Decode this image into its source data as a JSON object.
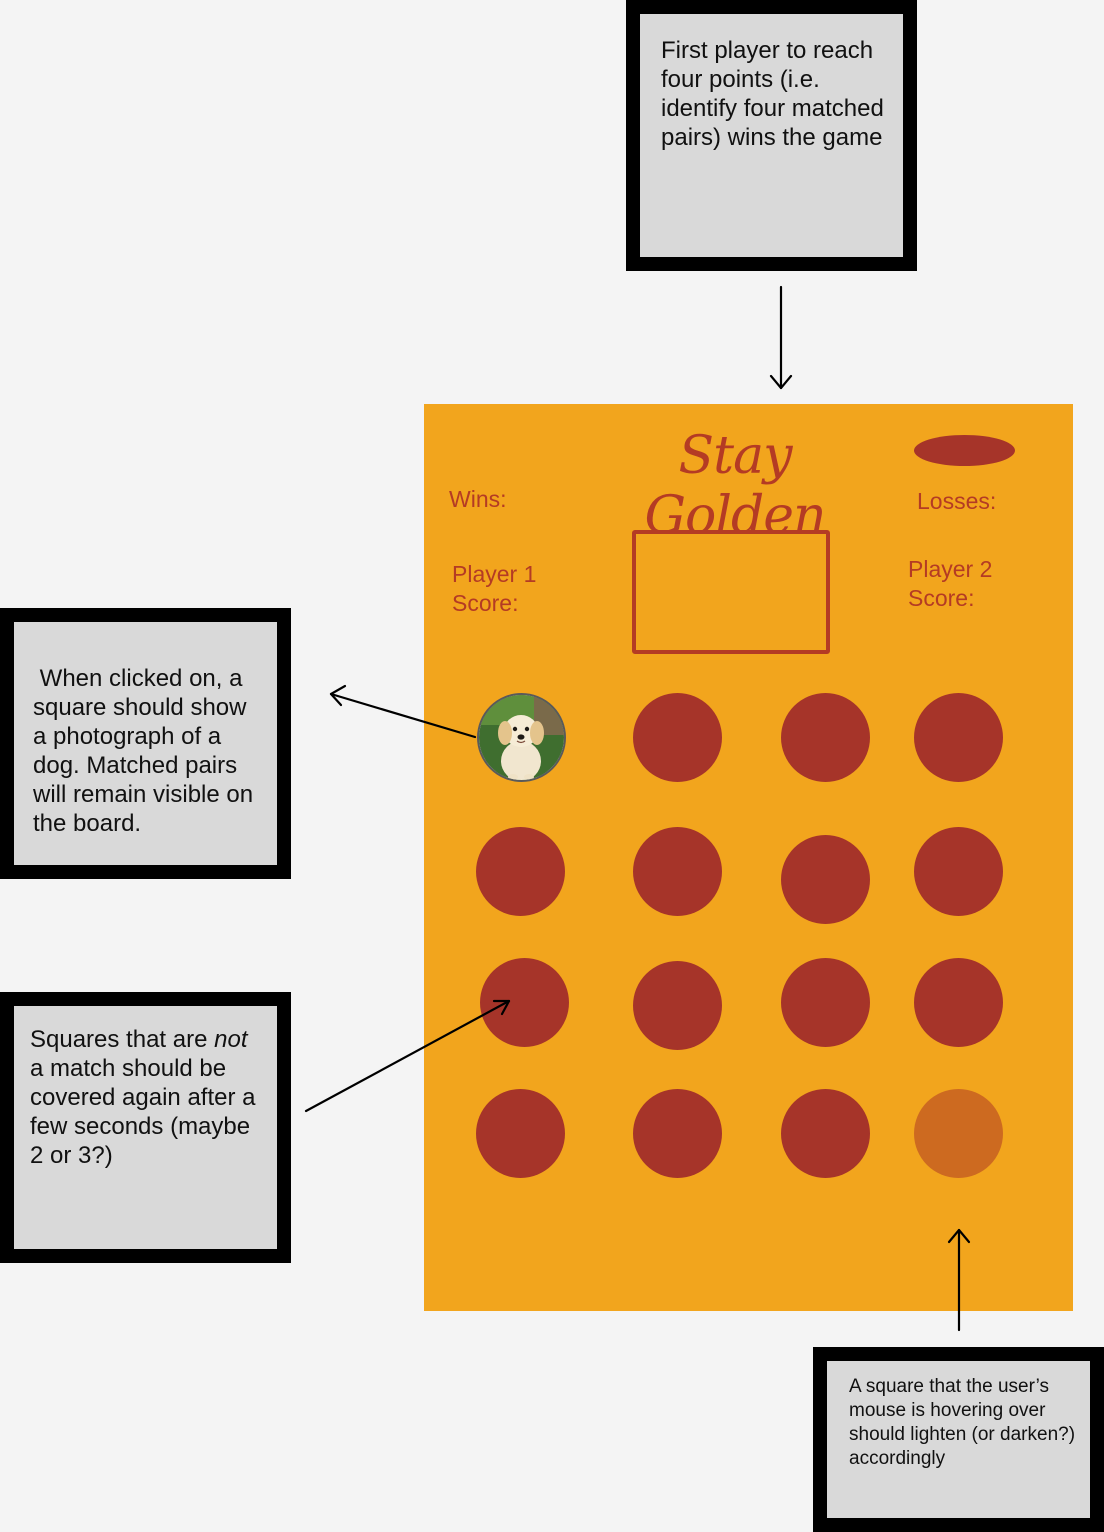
{
  "notes": {
    "win_condition": "First player to reach four points (i.e. identify four matched pairs) wins the game",
    "click_behavior": " When clicked on, a square should show a photograph of a dog. Matched pairs will remain visible on the board.",
    "no_match_before": "Squares that are ",
    "no_match_emphasis": "not",
    "no_match_after": " a match should be covered again after a few seconds (maybe 2 or 3?)",
    "hover_behavior": "A square that the user’s mouse is hovering over should lighten (or darken?) accordingly"
  },
  "board": {
    "title": "Stay Golden",
    "wins_label": "Wins:",
    "losses_label": "Losses:",
    "player1_label": "Player 1",
    "player1_score_label": "Score:",
    "player2_label": "Player 2",
    "player2_score_label": "Score:",
    "cards": [
      {
        "state": "revealed",
        "image": "golden-retriever-puppy-photo"
      },
      {
        "state": "covered"
      },
      {
        "state": "covered"
      },
      {
        "state": "covered"
      },
      {
        "state": "covered"
      },
      {
        "state": "covered"
      },
      {
        "state": "covered"
      },
      {
        "state": "covered"
      },
      {
        "state": "covered"
      },
      {
        "state": "covered"
      },
      {
        "state": "covered"
      },
      {
        "state": "covered"
      },
      {
        "state": "covered"
      },
      {
        "state": "covered"
      },
      {
        "state": "covered"
      },
      {
        "state": "hover"
      }
    ]
  },
  "colors": {
    "background": "#f4f4f4",
    "board": "#f2a51d",
    "card": "#a63429",
    "card_hover": "#cd6a20",
    "text_accent": "#b43b24",
    "note_fill": "#d9d9d9",
    "note_border": "#000000"
  }
}
